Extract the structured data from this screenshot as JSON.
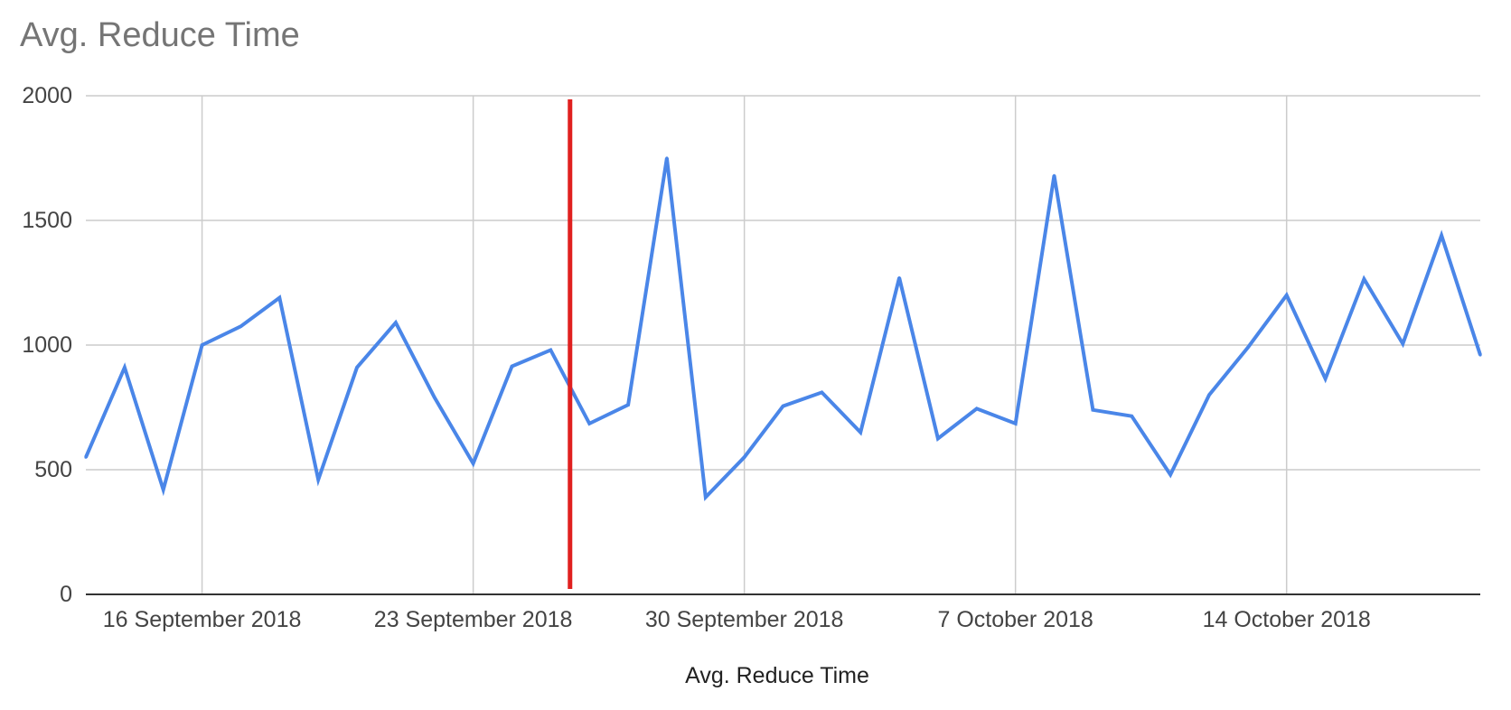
{
  "chart_data": {
    "type": "line",
    "title": "Avg. Reduce Time",
    "xlabel": "Avg. Reduce Time",
    "ylabel": "",
    "ylim": [
      0,
      2000
    ],
    "yticks": [
      0,
      500,
      1000,
      1500,
      2000
    ],
    "xlim": [
      "2018-09-13",
      "2018-10-19"
    ],
    "xticks": [
      {
        "date": "2018-09-16",
        "label": "16 September 2018"
      },
      {
        "date": "2018-09-23",
        "label": "23 September 2018"
      },
      {
        "date": "2018-09-30",
        "label": "30 September 2018"
      },
      {
        "date": "2018-10-07",
        "label": "7 October 2018"
      },
      {
        "date": "2018-10-14",
        "label": "14 October 2018"
      }
    ],
    "grid": true,
    "legend": "none",
    "series": [
      {
        "color": "#4a86e8",
        "x": [
          "2018-09-13",
          "2018-09-14",
          "2018-09-15",
          "2018-09-16",
          "2018-09-17",
          "2018-09-18",
          "2018-09-19",
          "2018-09-20",
          "2018-09-21",
          "2018-09-22",
          "2018-09-23",
          "2018-09-24",
          "2018-09-25",
          "2018-09-26",
          "2018-09-27",
          "2018-09-28",
          "2018-09-29",
          "2018-09-30",
          "2018-10-01",
          "2018-10-02",
          "2018-10-03",
          "2018-10-04",
          "2018-10-05",
          "2018-10-06",
          "2018-10-07",
          "2018-10-08",
          "2018-10-09",
          "2018-10-10",
          "2018-10-11",
          "2018-10-12",
          "2018-10-13",
          "2018-10-14",
          "2018-10-15",
          "2018-10-16",
          "2018-10-17",
          "2018-10-18",
          "2018-10-19"
        ],
        "values": [
          550,
          910,
          420,
          1000,
          1075,
          1190,
          460,
          910,
          1090,
          790,
          525,
          915,
          980,
          685,
          760,
          1750,
          390,
          550,
          755,
          810,
          650,
          1270,
          625,
          745,
          685,
          1680,
          740,
          715,
          480,
          800,
          990,
          1200,
          865,
          1265,
          1005,
          1440,
          960
        ]
      }
    ],
    "annotations": [
      {
        "type": "vertical-line",
        "x": "2018-09-25T12:00",
        "color": "#e0201f"
      }
    ]
  }
}
